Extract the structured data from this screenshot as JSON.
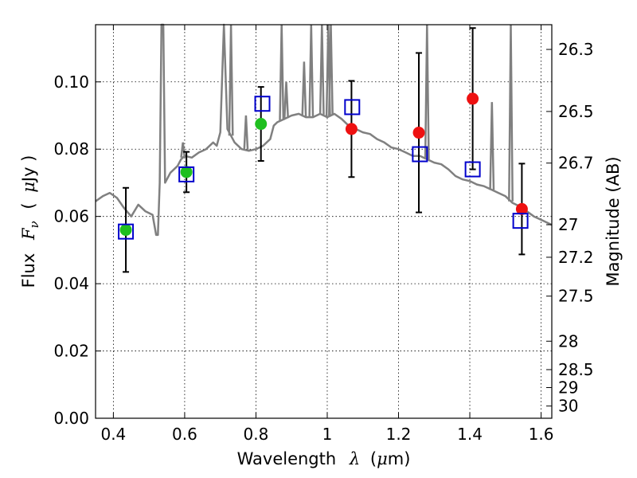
{
  "chart_data": {
    "type": "scatter",
    "title": "",
    "xlabel": "Wavelength",
    "xlabel_symbol": "λ",
    "xlabel_unit_open": "(",
    "xlabel_unit_mu": "μ",
    "xlabel_unit_rest": "m)",
    "ylabel": "Flux",
    "ylabel_symbol": "F",
    "ylabel_subscript": "ν",
    "ylabel_unit_open": "(",
    "ylabel_unit_mu": "μ",
    "ylabel_unit_rest": "Jy )",
    "y2label": "Magnitude (AB)",
    "xlim": [
      0.35,
      1.63
    ],
    "ylim": [
      0.0,
      0.117
    ],
    "grid": true,
    "x_ticks": [
      0.4,
      0.6,
      0.8,
      1.0,
      1.2,
      1.4,
      1.6
    ],
    "x_tick_labels": [
      "0.4",
      "0.6",
      "0.8",
      "1",
      "1.2",
      "1.4",
      "1.6"
    ],
    "y_ticks": [
      0.0,
      0.02,
      0.04,
      0.06,
      0.08,
      0.1
    ],
    "y_tick_labels": [
      "0.00",
      "0.02",
      "0.04",
      "0.06",
      "0.08",
      "0.10"
    ],
    "y2_ticks": [
      {
        "label": "26.3",
        "mag": 26.3
      },
      {
        "label": "26.5",
        "mag": 26.5
      },
      {
        "label": "26.7",
        "mag": 26.7
      },
      {
        "label": "27",
        "mag": 27.0
      },
      {
        "label": "27.2",
        "mag": 27.2
      },
      {
        "label": "27.5",
        "mag": 27.5
      },
      {
        "label": "28",
        "mag": 28.0
      },
      {
        "label": "28.5",
        "mag": 28.5
      },
      {
        "label": "29",
        "mag": 29.0
      },
      {
        "label": "30",
        "mag": 30.0
      }
    ],
    "colors": {
      "model_spectrum": "#808080",
      "green_points": "#1fbf1f",
      "red_points": "#ee1111",
      "model_boxes": "#0000cc",
      "errorbars": "#000000"
    },
    "series": [
      {
        "kind": "line",
        "points": [
          [
            0.35,
            0.0645
          ],
          [
            0.37,
            0.066
          ],
          [
            0.39,
            0.067
          ],
          [
            0.41,
            0.0655
          ],
          [
            0.43,
            0.0625
          ],
          [
            0.45,
            0.06
          ],
          [
            0.47,
            0.0635
          ],
          [
            0.49,
            0.0615
          ],
          [
            0.51,
            0.0605
          ],
          [
            0.52,
            0.0545
          ],
          [
            0.525,
            0.0545
          ],
          [
            0.53,
            0.07
          ],
          [
            0.535,
            0.117
          ],
          [
            0.54,
            0.117
          ],
          [
            0.545,
            0.07
          ],
          [
            0.56,
            0.073
          ],
          [
            0.58,
            0.075
          ],
          [
            0.59,
            0.077
          ],
          [
            0.6,
            0.078
          ],
          [
            0.62,
            0.0775
          ],
          [
            0.64,
            0.079
          ],
          [
            0.66,
            0.08
          ],
          [
            0.68,
            0.082
          ],
          [
            0.69,
            0.081
          ],
          [
            0.7,
            0.085
          ],
          [
            0.71,
            0.117
          ],
          [
            0.72,
            0.086
          ],
          [
            0.74,
            0.082
          ],
          [
            0.76,
            0.08
          ],
          [
            0.78,
            0.0795
          ],
          [
            0.8,
            0.08
          ],
          [
            0.82,
            0.081
          ],
          [
            0.84,
            0.083
          ],
          [
            0.85,
            0.087
          ],
          [
            0.86,
            0.088
          ],
          [
            0.88,
            0.089
          ],
          [
            0.9,
            0.09
          ],
          [
            0.92,
            0.0905
          ],
          [
            0.94,
            0.0895
          ],
          [
            0.96,
            0.0895
          ],
          [
            0.98,
            0.0905
          ],
          [
            1.0,
            0.0895
          ],
          [
            1.02,
            0.0905
          ],
          [
            1.04,
            0.089
          ],
          [
            1.06,
            0.087
          ],
          [
            1.08,
            0.086
          ],
          [
            1.1,
            0.085
          ],
          [
            1.12,
            0.0845
          ],
          [
            1.14,
            0.083
          ],
          [
            1.16,
            0.082
          ],
          [
            1.18,
            0.0805
          ],
          [
            1.2,
            0.08
          ],
          [
            1.22,
            0.079
          ],
          [
            1.24,
            0.078
          ],
          [
            1.26,
            0.078
          ],
          [
            1.28,
            0.077
          ],
          [
            1.3,
            0.076
          ],
          [
            1.32,
            0.0755
          ],
          [
            1.34,
            0.074
          ],
          [
            1.36,
            0.072
          ],
          [
            1.38,
            0.071
          ],
          [
            1.4,
            0.0705
          ],
          [
            1.42,
            0.0695
          ],
          [
            1.44,
            0.069
          ],
          [
            1.46,
            0.068
          ],
          [
            1.48,
            0.067
          ],
          [
            1.5,
            0.066
          ],
          [
            1.52,
            0.064
          ],
          [
            1.54,
            0.063
          ],
          [
            1.56,
            0.0615
          ],
          [
            1.58,
            0.06
          ],
          [
            1.6,
            0.059
          ],
          [
            1.63,
            0.0575
          ]
        ]
      },
      {
        "kind": "emission_lines",
        "lines": [
          {
            "x": 0.595,
            "peak": 0.082
          },
          {
            "x": 0.73,
            "peak": 0.117
          },
          {
            "x": 0.772,
            "peak": 0.09
          },
          {
            "x": 0.872,
            "peak": 0.117
          },
          {
            "x": 0.885,
            "peak": 0.1
          },
          {
            "x": 0.935,
            "peak": 0.106
          },
          {
            "x": 0.955,
            "peak": 0.117
          },
          {
            "x": 0.985,
            "peak": 0.117
          },
          {
            "x": 1.003,
            "peak": 0.117
          },
          {
            "x": 1.01,
            "peak": 0.117
          },
          {
            "x": 1.28,
            "peak": 0.117
          },
          {
            "x": 1.462,
            "peak": 0.094
          },
          {
            "x": 1.515,
            "peak": 0.117
          }
        ]
      },
      {
        "kind": "errorbar_points_green",
        "points": [
          {
            "x": 0.435,
            "y": 0.056,
            "yerr": 0.0125
          },
          {
            "x": 0.605,
            "y": 0.0732,
            "yerr": 0.006
          },
          {
            "x": 0.814,
            "y": 0.0875,
            "yerr": 0.011
          }
        ]
      },
      {
        "kind": "errorbar_points_red",
        "points": [
          {
            "x": 1.068,
            "y": 0.086,
            "yerr": 0.0143
          },
          {
            "x": 1.257,
            "y": 0.0849,
            "yerr": 0.0237
          },
          {
            "x": 1.408,
            "y": 0.095,
            "yerr": 0.021
          },
          {
            "x": 1.546,
            "y": 0.0622,
            "yerr": 0.0135
          }
        ]
      },
      {
        "kind": "model_boxes",
        "points": [
          {
            "x": 0.435,
            "y": 0.0555
          },
          {
            "x": 0.605,
            "y": 0.0725
          },
          {
            "x": 0.818,
            "y": 0.0935
          },
          {
            "x": 1.07,
            "y": 0.0925
          },
          {
            "x": 1.26,
            "y": 0.0785
          },
          {
            "x": 1.408,
            "y": 0.074
          },
          {
            "x": 1.542,
            "y": 0.0587
          }
        ]
      }
    ]
  }
}
